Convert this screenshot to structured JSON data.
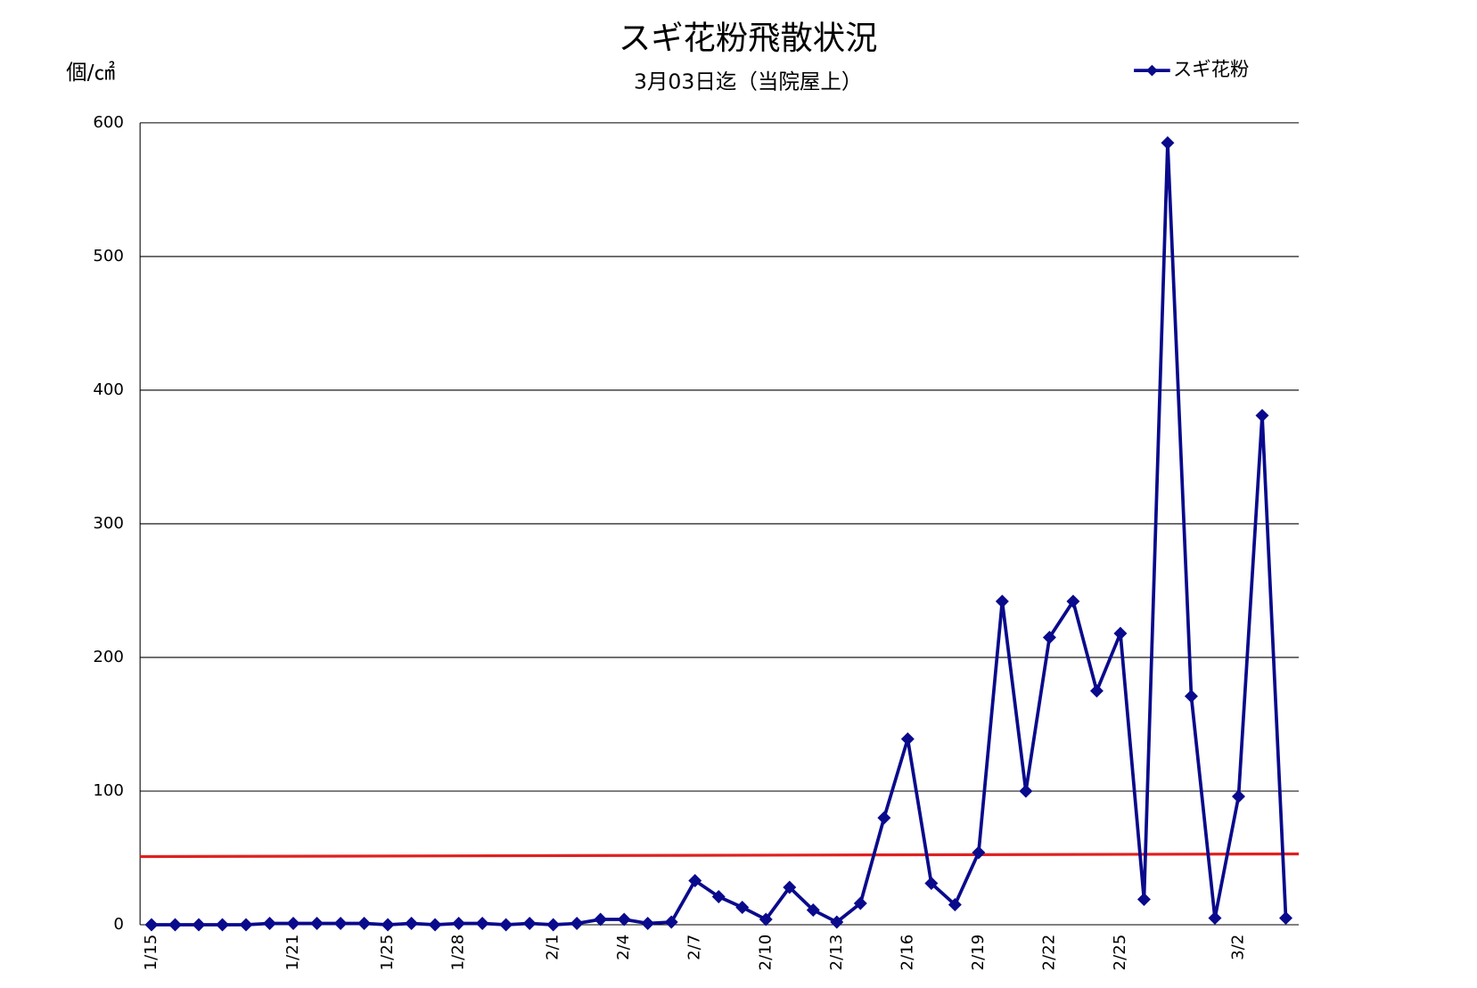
{
  "chart_data": {
    "type": "line",
    "title": "スギ花粉飛散状況",
    "subtitle": "3月03日迄（当院屋上）",
    "y_label": "個/㎠",
    "categories": [
      "1/15",
      null,
      null,
      null,
      null,
      null,
      "1/21",
      null,
      null,
      null,
      "1/25",
      null,
      null,
      "1/28",
      null,
      null,
      null,
      "2/1",
      null,
      null,
      "2/4",
      null,
      null,
      "2/7",
      null,
      null,
      "2/10",
      null,
      null,
      "2/13",
      null,
      null,
      "2/16",
      null,
      null,
      "2/19",
      null,
      null,
      "2/22",
      null,
      null,
      "2/25",
      null,
      null,
      null,
      null,
      "3/2",
      null,
      null
    ],
    "series": [
      {
        "name": "スギ花粉",
        "color": "#0a0a8c",
        "values": [
          0,
          0,
          0,
          0,
          0,
          1,
          1,
          1,
          1,
          1,
          0,
          1,
          0,
          1,
          1,
          0,
          1,
          0,
          1,
          4,
          4,
          1,
          2,
          33,
          21,
          13,
          4,
          28,
          11,
          2,
          16,
          80,
          139,
          31,
          15,
          54,
          242,
          100,
          215,
          242,
          175,
          218,
          19,
          585,
          171,
          5,
          96,
          381,
          5
        ]
      }
    ],
    "reference_line": {
      "color": "#e02020",
      "values": [
        51,
        53
      ]
    },
    "ylim": [
      0,
      600
    ],
    "yticks": [
      0,
      100,
      200,
      300,
      400,
      500,
      600
    ],
    "grid": true,
    "legend": "top-right"
  }
}
